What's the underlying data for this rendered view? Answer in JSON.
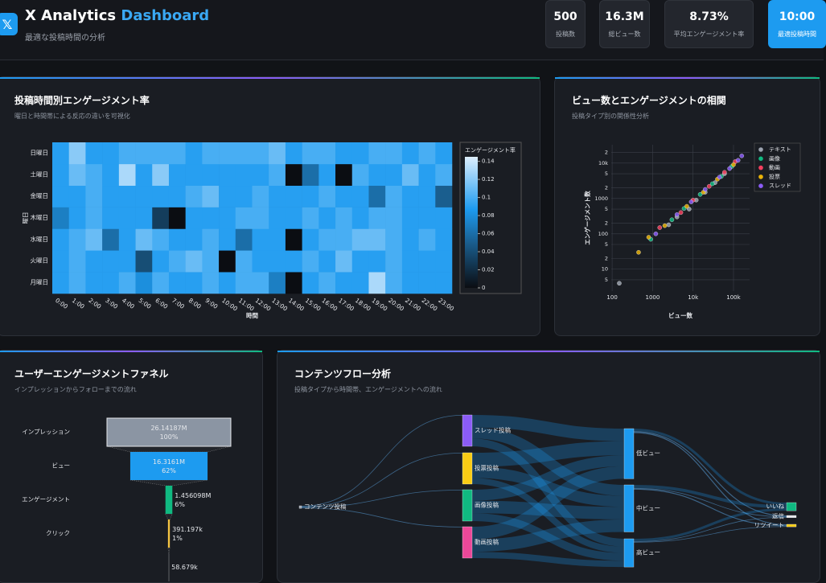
{
  "header": {
    "title_main": "X Analytics",
    "title_accent": "Dashboard",
    "subtitle": "最適な投稿時間の分析"
  },
  "stats": [
    {
      "value": "500",
      "label": "投稿数"
    },
    {
      "value": "16.3M",
      "label": "総ビュー数"
    },
    {
      "value": "8.73%",
      "label": "平均エンゲージメント率"
    },
    {
      "value": "10:00",
      "label": "最適投稿時間"
    }
  ],
  "chart_data": [
    {
      "type": "heatmap",
      "title": "投稿時間別エンゲージメント率",
      "subtitle": "曜日と時間帯による反応の違いを可視化",
      "x": [
        "0:00",
        "1:00",
        "2:00",
        "3:00",
        "4:00",
        "5:00",
        "6:00",
        "7:00",
        "8:00",
        "9:00",
        "10:00",
        "11:00",
        "12:00",
        "13:00",
        "14:00",
        "15:00",
        "16:00",
        "17:00",
        "18:00",
        "19:00",
        "20:00",
        "21:00",
        "22:00",
        "23:00"
      ],
      "y": [
        "月曜日",
        "火曜日",
        "水曜日",
        "木曜日",
        "金曜日",
        "土曜日",
        "日曜日"
      ],
      "z": [
        [
          0.09,
          0.1,
          0.09,
          0.09,
          0.1,
          0.08,
          0.1,
          0.09,
          0.09,
          0.1,
          0.09,
          0.1,
          0.1,
          0.07,
          0,
          0.09,
          0.1,
          0.09,
          0.09,
          0.13,
          0.1,
          0.09,
          0.09,
          0.09
        ],
        [
          0.09,
          0.1,
          0.09,
          0.09,
          0.09,
          0.04,
          0.09,
          0.1,
          0.11,
          0.1,
          0,
          0.1,
          0.09,
          0.09,
          0.09,
          0.1,
          0.09,
          0.11,
          0.09,
          0.09,
          0.1,
          0.09,
          0.09,
          0.09
        ],
        [
          0.09,
          0.1,
          0.11,
          0.06,
          0.09,
          0.11,
          0.1,
          0.09,
          0.09,
          0.1,
          0.09,
          0.06,
          0.09,
          0.09,
          0,
          0.09,
          0.1,
          0.1,
          0.11,
          0.11,
          0.1,
          0.09,
          0.1,
          0.09
        ],
        [
          0.07,
          0.09,
          0.1,
          0.09,
          0.09,
          0.09,
          0.03,
          0,
          0.09,
          0.09,
          0.09,
          0.1,
          0.1,
          0.09,
          0.09,
          0.1,
          0.09,
          0.1,
          0.09,
          0.1,
          0.1,
          0.09,
          0.09,
          0.09
        ],
        [
          0.09,
          0.09,
          0.1,
          0.09,
          0.09,
          0.09,
          0.09,
          0.09,
          0.1,
          0.11,
          0.09,
          0.09,
          0.1,
          0.09,
          0.09,
          0.09,
          0.1,
          0.09,
          0.09,
          0.06,
          0.1,
          0.09,
          0.09,
          0.05
        ],
        [
          0.09,
          0.11,
          0.1,
          0.09,
          0.13,
          0.09,
          0.12,
          0.09,
          0.09,
          0.09,
          0.09,
          0.09,
          0.09,
          0.1,
          0,
          0.06,
          0.09,
          0,
          0.1,
          0.09,
          0.09,
          0.11,
          0.09,
          0.1
        ],
        [
          0.09,
          0.12,
          0.09,
          0.09,
          0.1,
          0.1,
          0.1,
          0.1,
          0.09,
          0.1,
          0.1,
          0.1,
          0.1,
          0.11,
          0.09,
          0.1,
          0.1,
          0.09,
          0.09,
          0.1,
          0.1,
          0.09,
          0.1,
          0.09
        ]
      ],
      "xlabel": "時間",
      "ylabel": "曜日",
      "colorbar_title": "エンゲージメント率",
      "zlim": [
        0,
        0.145
      ],
      "colorbar_ticks": [
        0,
        0.02,
        0.04,
        0.06,
        0.08,
        0.1,
        0.12,
        0.14
      ],
      "colorscale": [
        [
          0,
          "#0b0d12"
        ],
        [
          0.35,
          "#1a5f90"
        ],
        [
          0.6,
          "#1d9bf0"
        ],
        [
          1,
          "#dcEefd"
        ]
      ]
    },
    {
      "type": "scatter",
      "title": "ビュー数とエンゲージメントの相関",
      "subtitle": "投稿タイプ別の関係性分析",
      "xlabel": "ビュー数",
      "ylabel": "エンゲージメント数",
      "log_x": true,
      "log_y": true,
      "grid": true,
      "xlim": [
        95,
        250000
      ],
      "ylim": [
        2.4,
        33000
      ],
      "xticks": [
        100,
        1000,
        {
          "value": 10000,
          "label": "10k"
        },
        {
          "value": 100000,
          "label": "100k"
        }
      ],
      "yticks": [
        5,
        10,
        {
          "value": 20,
          "label": "2"
        },
        {
          "value": 50,
          "label": "5"
        },
        100,
        {
          "value": 200,
          "label": "2"
        },
        {
          "value": 500,
          "label": "5"
        },
        1000,
        {
          "value": 2000,
          "label": "2"
        },
        {
          "value": 5000,
          "label": "5"
        },
        {
          "value": 10000,
          "label": "10k"
        },
        {
          "value": 20000,
          "label": "2"
        }
      ],
      "series": [
        {
          "name": "テキスト",
          "color": "#9ca3af",
          "x": [
            150,
            2500,
            4000,
            8000,
            12000,
            20000,
            35000,
            60000
          ],
          "values": [
            4,
            180,
            300,
            500,
            900,
            1500,
            2800,
            5000
          ]
        },
        {
          "name": "画像",
          "color": "#10b981",
          "x": [
            900,
            3000,
            6000,
            15000,
            30000,
            50000,
            90000
          ],
          "values": [
            70,
            250,
            520,
            1300,
            2600,
            4200,
            8000
          ]
        },
        {
          "name": "動画",
          "color": "#f43f5e",
          "x": [
            1500,
            5000,
            10000,
            25000,
            60000,
            110000
          ],
          "values": [
            150,
            400,
            900,
            2200,
            5500,
            11000
          ]
        },
        {
          "name": "投票",
          "color": "#eab308",
          "x": [
            450,
            800,
            2000,
            7000,
            18000,
            40000,
            100000
          ],
          "values": [
            30,
            80,
            170,
            600,
            1500,
            3500,
            9000
          ]
        },
        {
          "name": "スレッド",
          "color": "#8b5cf6",
          "x": [
            1200,
            4000,
            9000,
            20000,
            45000,
            80000,
            130000,
            160000
          ],
          "values": [
            100,
            350,
            800,
            1800,
            4000,
            7000,
            12000,
            16000
          ]
        }
      ]
    },
    {
      "type": "funnel",
      "title": "ユーザーエンゲージメントファネル",
      "subtitle": "インプレッションからフォローまでの流れ",
      "categories": [
        "インプレッション",
        "ビュー",
        "エンゲージメント",
        "クリック",
        null
      ],
      "values": [
        26141870,
        16316100,
        1456098,
        391197,
        58679
      ],
      "value_labels": [
        "26.14187M",
        "16.3161M",
        "1.456098M",
        "391.197k",
        "58.679k"
      ],
      "percent_labels": [
        "100%",
        "62%",
        "6%",
        "1%",
        null
      ],
      "colors": [
        "#8b95a3",
        "#1d9bf0",
        "#10b981",
        "#f5c542",
        "#e5e7eb"
      ]
    },
    {
      "type": "sankey",
      "title": "コンテンツフロー分析",
      "subtitle": "投稿タイプから時間帯、エンゲージメントへの流れ",
      "nodes": [
        {
          "label": "コンテンツ投稿",
          "color": "#9ca3af"
        },
        {
          "label": "スレッド投稿",
          "color": "#8b5cf6"
        },
        {
          "label": "投票投稿",
          "color": "#facc15"
        },
        {
          "label": "画像投稿",
          "color": "#10b981"
        },
        {
          "label": "動画投稿",
          "color": "#ec4899"
        },
        {
          "label": "低ビュー",
          "color": "#1d9bf0"
        },
        {
          "label": "中ビュー",
          "color": "#1d9bf0"
        },
        {
          "label": "高ビュー",
          "color": "#1d9bf0"
        },
        {
          "label": "いいね",
          "color": "#10b981"
        },
        {
          "label": "返信",
          "color": "#e5e7eb"
        },
        {
          "label": "リツイート",
          "color": "#facc15"
        }
      ],
      "links": [
        {
          "source": 0,
          "target": 1,
          "value": 2
        },
        {
          "source": 0,
          "target": 2,
          "value": 2
        },
        {
          "source": 0,
          "target": 3,
          "value": 2
        },
        {
          "source": 0,
          "target": 4,
          "value": 2
        },
        {
          "source": 1,
          "target": 5,
          "value": 40
        },
        {
          "source": 1,
          "target": 6,
          "value": 35
        },
        {
          "source": 1,
          "target": 7,
          "value": 25
        },
        {
          "source": 2,
          "target": 5,
          "value": 45
        },
        {
          "source": 2,
          "target": 6,
          "value": 35
        },
        {
          "source": 2,
          "target": 7,
          "value": 20
        },
        {
          "source": 3,
          "target": 5,
          "value": 35
        },
        {
          "source": 3,
          "target": 6,
          "value": 40
        },
        {
          "source": 3,
          "target": 7,
          "value": 25
        },
        {
          "source": 4,
          "target": 5,
          "value": 40
        },
        {
          "source": 4,
          "target": 6,
          "value": 40
        },
        {
          "source": 4,
          "target": 7,
          "value": 20
        },
        {
          "source": 5,
          "target": 8,
          "value": 8
        },
        {
          "source": 5,
          "target": 9,
          "value": 3
        },
        {
          "source": 5,
          "target": 10,
          "value": 3
        },
        {
          "source": 6,
          "target": 8,
          "value": 10
        },
        {
          "source": 6,
          "target": 9,
          "value": 2
        },
        {
          "source": 6,
          "target": 10,
          "value": 3
        },
        {
          "source": 7,
          "target": 8,
          "value": 8
        },
        {
          "source": 7,
          "target": 9,
          "value": 2
        },
        {
          "source": 7,
          "target": 10,
          "value": 2
        }
      ]
    }
  ]
}
